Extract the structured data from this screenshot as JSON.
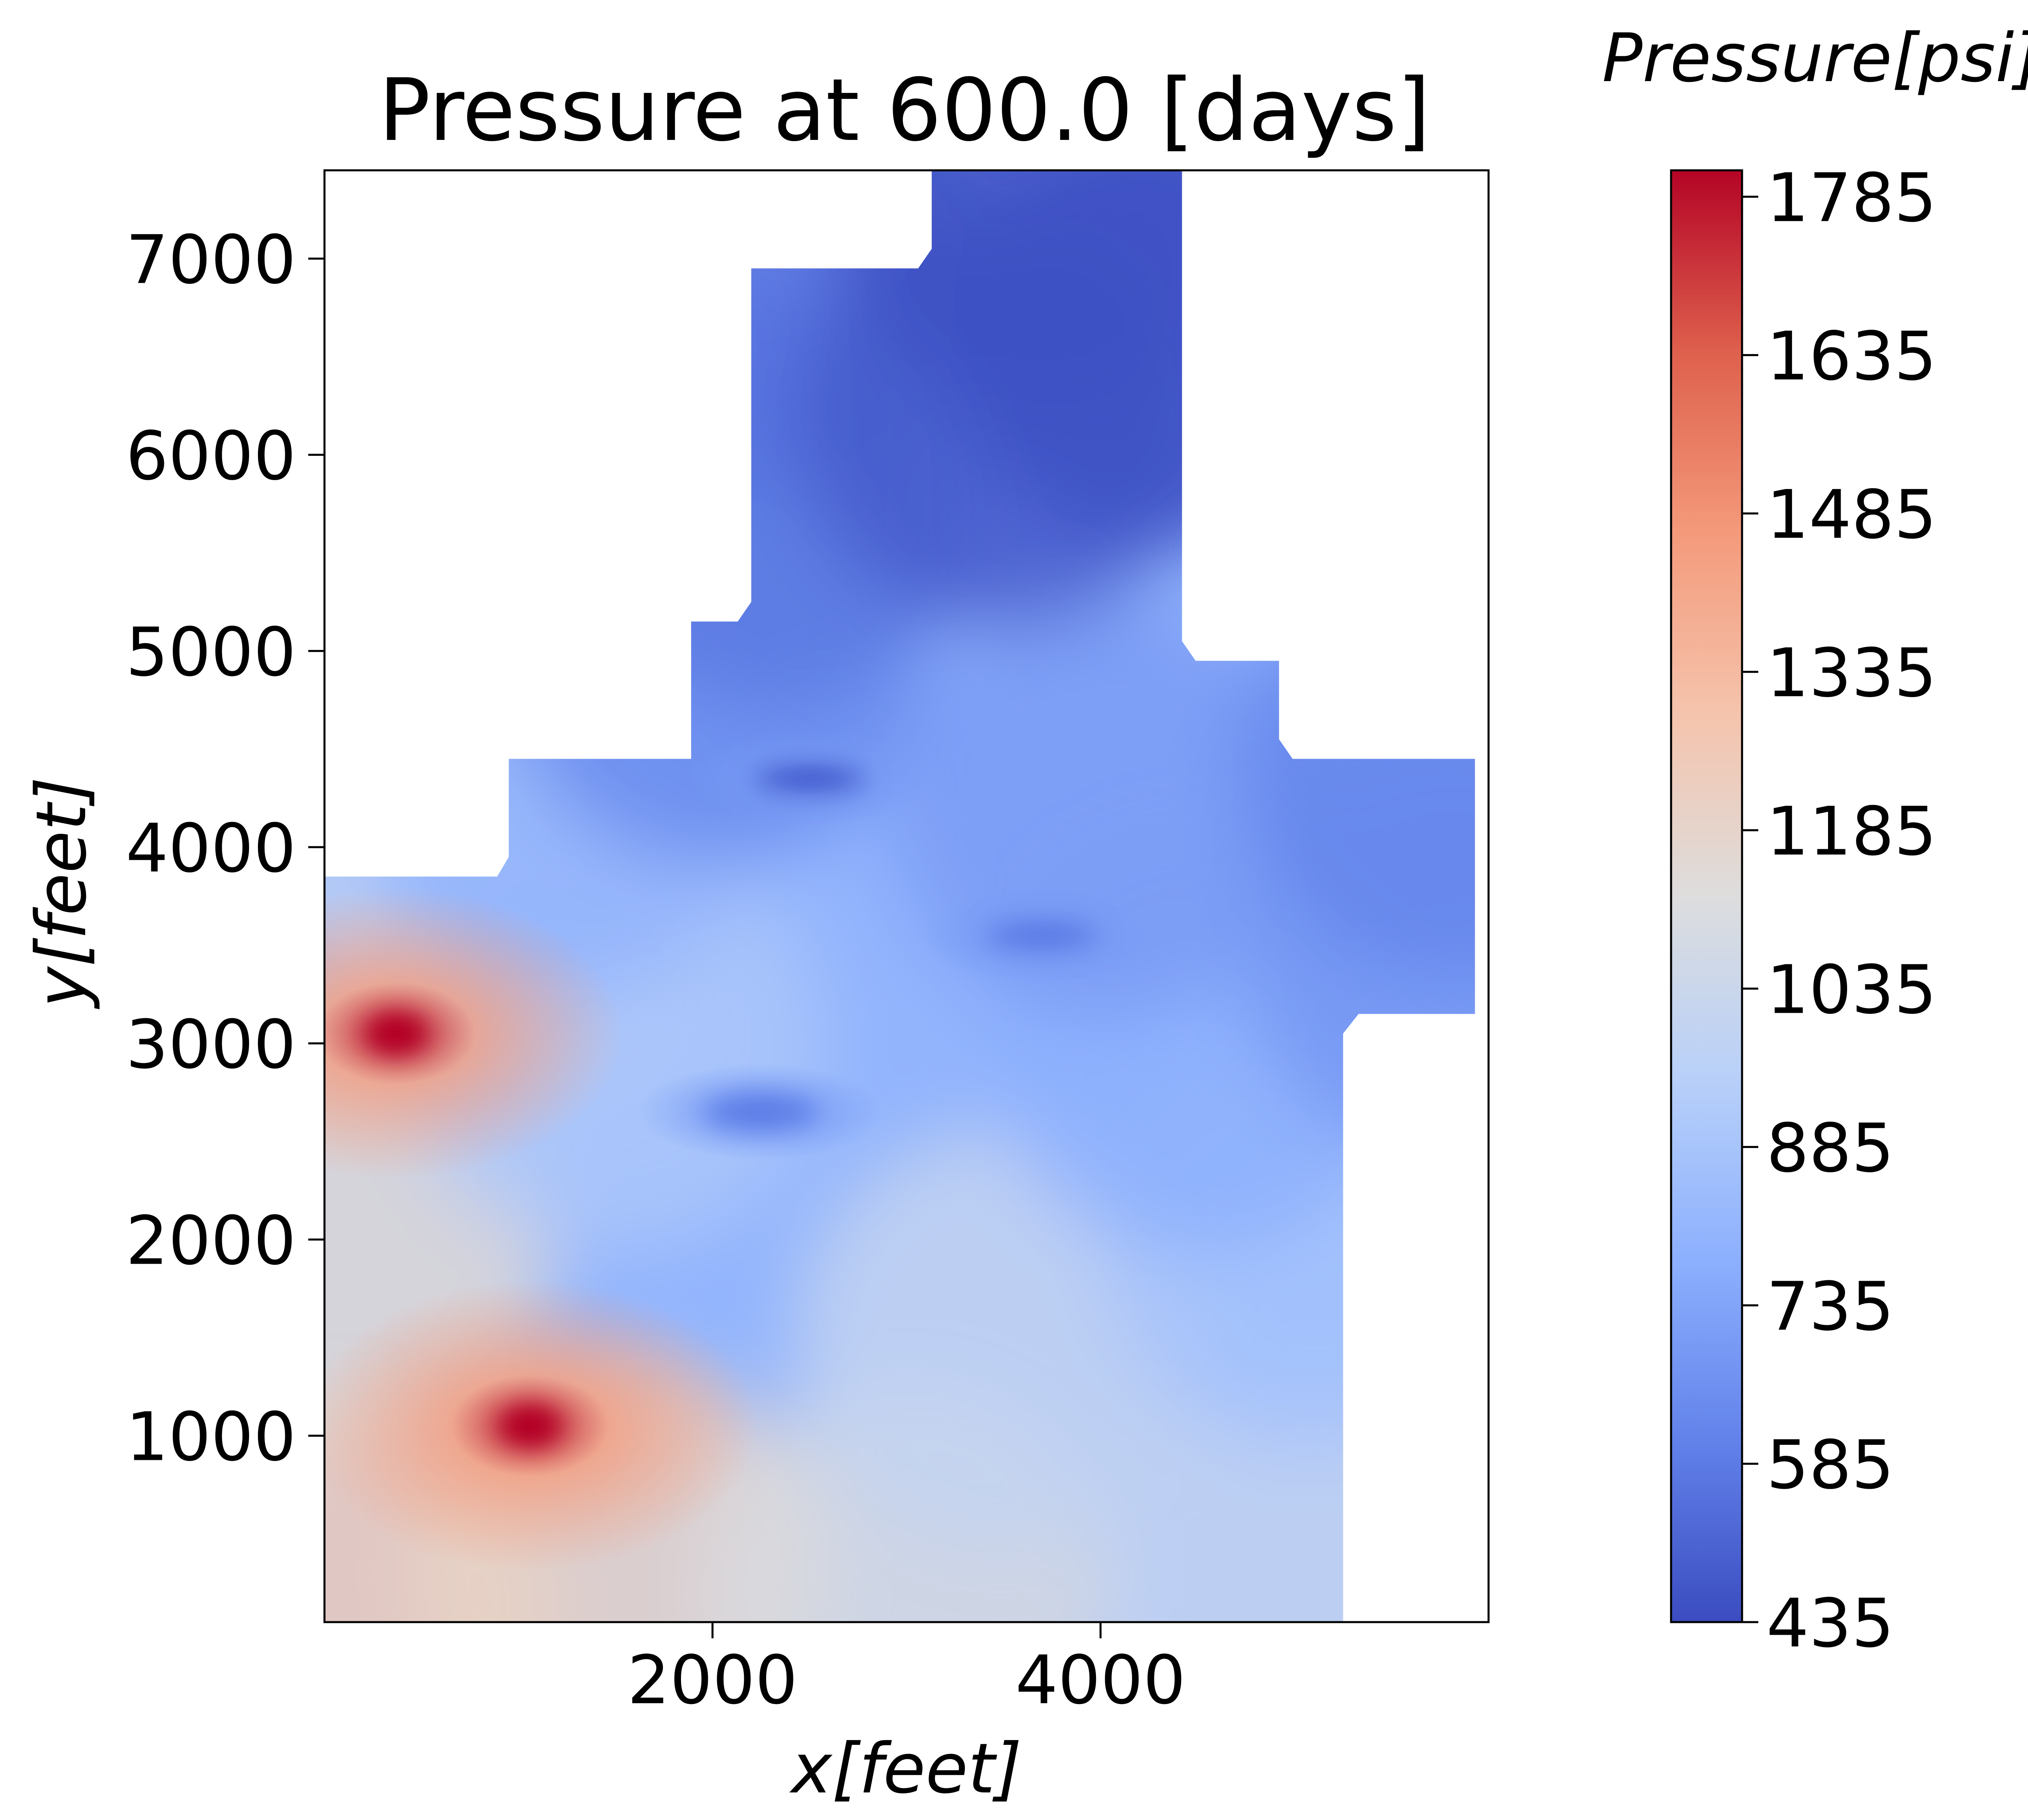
{
  "chart_data": {
    "type": "heatmap",
    "title": "Pressure at 600.0 [days]",
    "xlabel": "x[feet]",
    "ylabel": "y[feet]",
    "xlim": [
      0,
      6000
    ],
    "ylim": [
      50,
      7450
    ],
    "xticks": [
      2000,
      4000
    ],
    "yticks": [
      1000,
      2000,
      3000,
      4000,
      5000,
      6000,
      7000
    ],
    "colorbar": {
      "label": "Pressure[psi]",
      "colormap": "coolwarm",
      "range": [
        435,
        1810
      ],
      "ticks": [
        435,
        585,
        735,
        885,
        1035,
        1185,
        1335,
        1485,
        1635,
        1785
      ]
    },
    "grid": false,
    "domain_outline": [
      [
        0,
        50
      ],
      [
        5250,
        50
      ],
      [
        5250,
        3050
      ],
      [
        5330,
        3150
      ],
      [
        5930,
        3150
      ],
      [
        5930,
        4450
      ],
      [
        4990,
        4450
      ],
      [
        4920,
        4550
      ],
      [
        4920,
        4950
      ],
      [
        4490,
        4950
      ],
      [
        4420,
        5050
      ],
      [
        4420,
        7450
      ],
      [
        3130,
        7450
      ],
      [
        3130,
        7050
      ],
      [
        3060,
        6950
      ],
      [
        2200,
        6950
      ],
      [
        2200,
        5250
      ],
      [
        2130,
        5150
      ],
      [
        1890,
        5150
      ],
      [
        1890,
        4450
      ],
      [
        950,
        4450
      ],
      [
        950,
        3950
      ],
      [
        890,
        3850
      ],
      [
        0,
        3850
      ]
    ],
    "wells": [
      {
        "type": "injector",
        "x": 370,
        "y": 3050,
        "pressure": 1810
      },
      {
        "type": "injector",
        "x": 1060,
        "y": 1050,
        "pressure": 1810
      },
      {
        "type": "producer",
        "x": 2250,
        "y": 2650,
        "pressure": 600
      },
      {
        "type": "producer",
        "x": 2500,
        "y": 4350,
        "pressure": 520
      },
      {
        "type": "producer",
        "x": 3700,
        "y": 3550,
        "pressure": 600
      }
    ],
    "field_samples": [
      {
        "x": 100,
        "y": 100,
        "pressure": 1250
      },
      {
        "x": 1500,
        "y": 300,
        "pressure": 1200
      },
      {
        "x": 3000,
        "y": 200,
        "pressure": 1100
      },
      {
        "x": 5100,
        "y": 200,
        "pressure": 1000
      },
      {
        "x": 100,
        "y": 2000,
        "pressure": 1150
      },
      {
        "x": 3500,
        "y": 1500,
        "pressure": 1000
      },
      {
        "x": 5100,
        "y": 2000,
        "pressure": 880
      },
      {
        "x": 900,
        "y": 3700,
        "pressure": 1000
      },
      {
        "x": 1500,
        "y": 3000,
        "pressure": 900
      },
      {
        "x": 4500,
        "y": 3000,
        "pressure": 780
      },
      {
        "x": 5800,
        "y": 3500,
        "pressure": 680
      },
      {
        "x": 1200,
        "y": 4300,
        "pressure": 800
      },
      {
        "x": 2000,
        "y": 5000,
        "pressure": 640
      },
      {
        "x": 4000,
        "y": 4200,
        "pressure": 700
      },
      {
        "x": 5800,
        "y": 4400,
        "pressure": 620
      },
      {
        "x": 2300,
        "y": 5800,
        "pressure": 580
      },
      {
        "x": 2300,
        "y": 6900,
        "pressure": 560
      },
      {
        "x": 3500,
        "y": 6200,
        "pressure": 480
      },
      {
        "x": 3700,
        "y": 7300,
        "pressure": 450
      },
      {
        "x": 4300,
        "y": 6600,
        "pressure": 450
      }
    ]
  }
}
